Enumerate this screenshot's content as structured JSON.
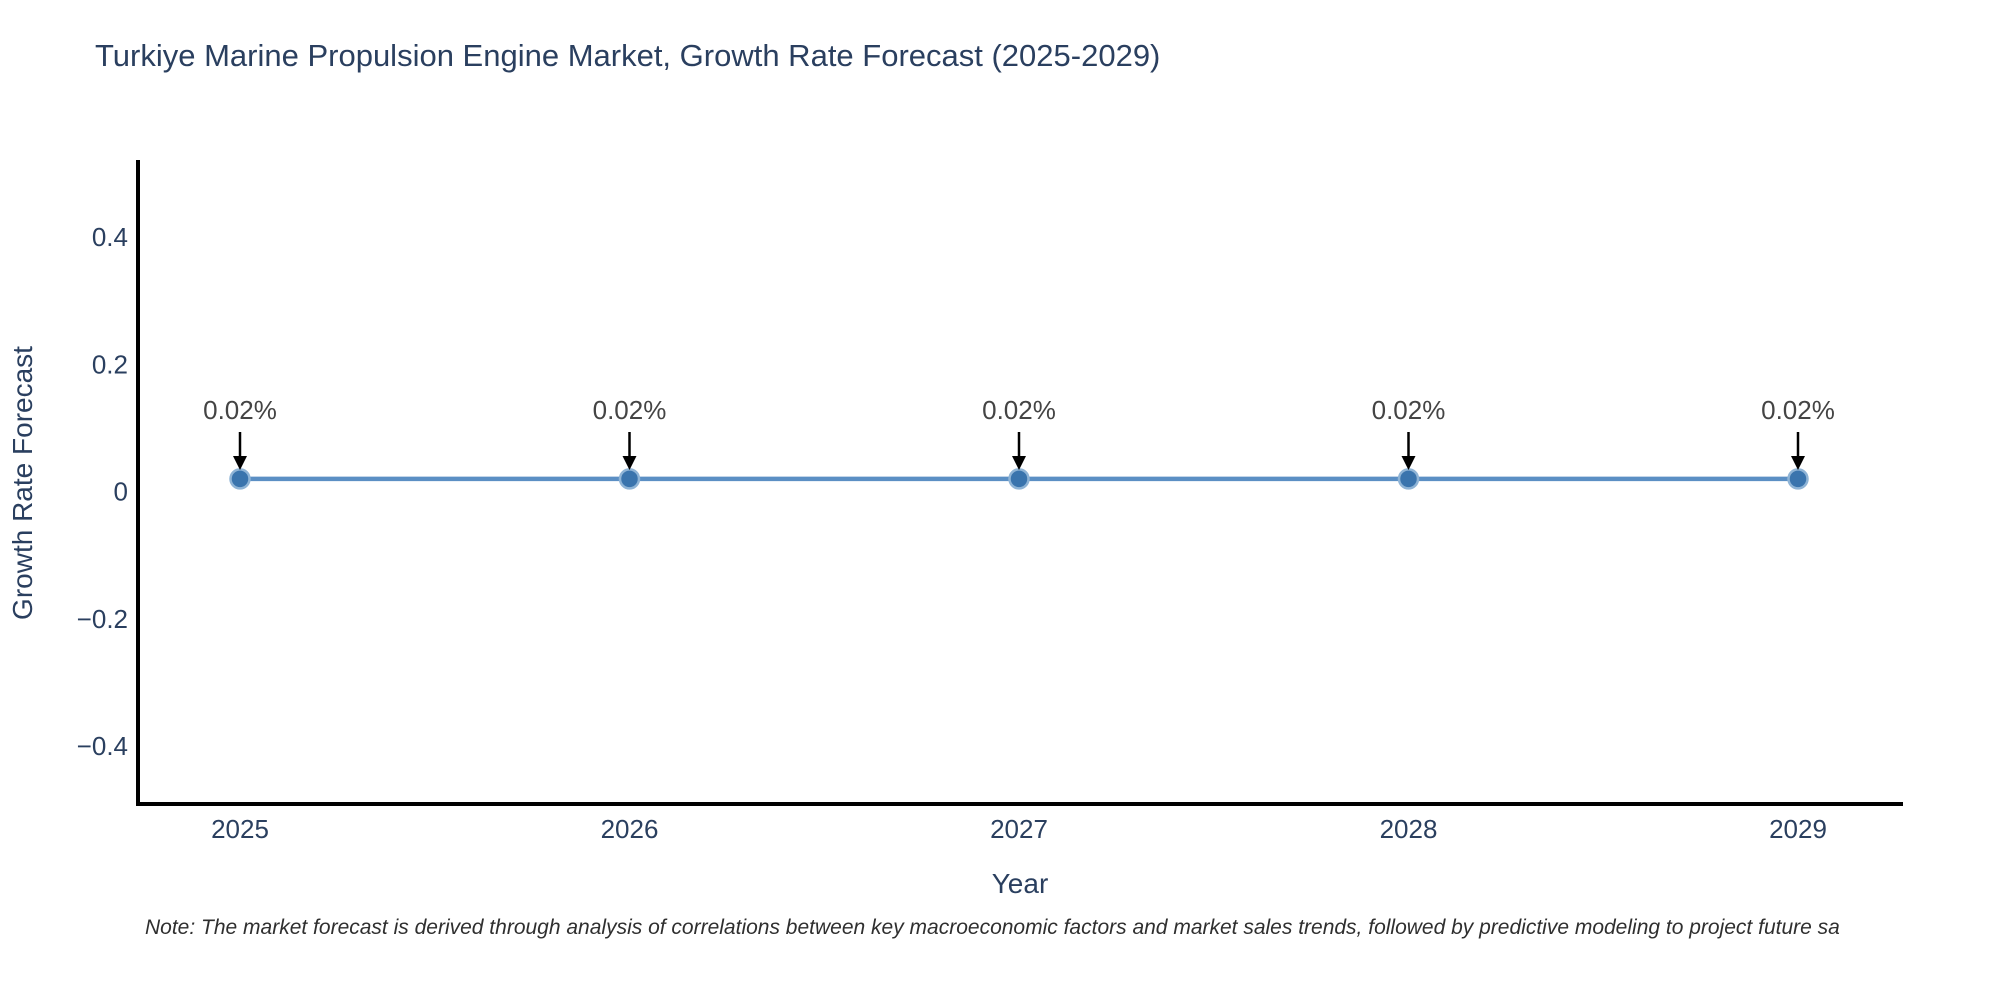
{
  "title": "Turkiye Marine Propulsion Engine Market, Growth Rate Forecast (2025-2029)",
  "note": "Note: The market forecast is derived through analysis of correlations between key macroeconomic factors and market sales trends, followed by predictive modeling to project future sa",
  "chart_data": {
    "type": "line",
    "title": "Turkiye Marine Propulsion Engine Market, Growth Rate Forecast (2025-2029)",
    "xlabel": "Year",
    "ylabel": "Growth Rate Forecast",
    "x": [
      2025,
      2026,
      2027,
      2028,
      2029
    ],
    "values": [
      0.02,
      0.02,
      0.02,
      0.02,
      0.02
    ],
    "point_labels": [
      "0.02%",
      "0.02%",
      "0.02%",
      "0.02%",
      "0.02%"
    ],
    "yticks": [
      0.4,
      0.2,
      0,
      -0.2,
      -0.4
    ],
    "ytick_labels": [
      "0.4",
      "0.2",
      "0",
      "−0.2",
      "−0.4"
    ],
    "ylim": [
      -0.49,
      0.52
    ],
    "grid": false,
    "legend": "none",
    "line_color": "#5b8fc4",
    "marker_color": "#3a74ad",
    "marker_edge_color": "#8fb4d6",
    "axis_color": "#000000",
    "text_color": "#2a3f5f",
    "annotation_text_color": "#444444",
    "annotation_arrow_color": "#000000",
    "background_color": "#ffffff"
  }
}
